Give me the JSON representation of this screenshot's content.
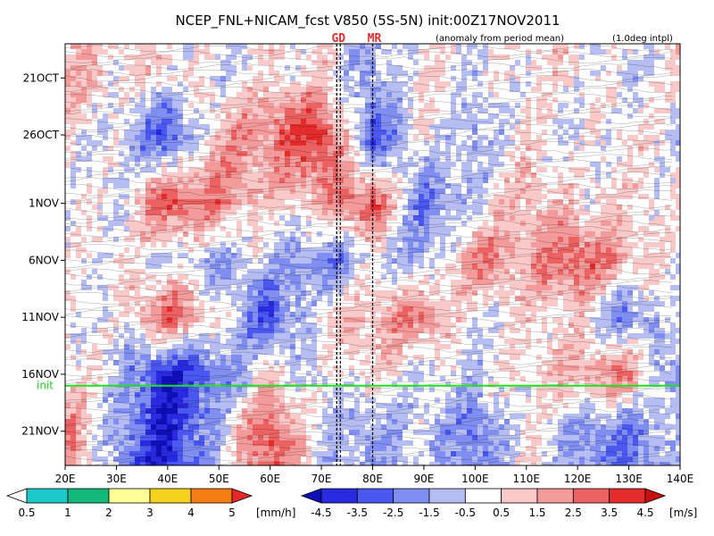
{
  "chart_data": {
    "type": "heatmap",
    "title": "NCEP_FNL+NICAM_fcst V850 (5S-5N) init:00Z17NOV2011",
    "subtitle": "(anomaly from period mean)",
    "note": "(1.0deg intpl)",
    "x_ticks": [
      {
        "lon": 20,
        "label": "20E"
      },
      {
        "lon": 30,
        "label": "30E"
      },
      {
        "lon": 40,
        "label": "40E"
      },
      {
        "lon": 50,
        "label": "50E"
      },
      {
        "lon": 60,
        "label": "60E"
      },
      {
        "lon": 70,
        "label": "70E"
      },
      {
        "lon": 80,
        "label": "80E"
      },
      {
        "lon": 90,
        "label": "90E"
      },
      {
        "lon": 100,
        "label": "100E"
      },
      {
        "lon": 110,
        "label": "110E"
      },
      {
        "lon": 120,
        "label": "120E"
      },
      {
        "lon": 130,
        "label": "130E"
      },
      {
        "lon": 140,
        "label": "140E"
      }
    ],
    "xlim": [
      20,
      140
    ],
    "y_ticks": [
      {
        "date": "2011-10-21",
        "label": "21OCT"
      },
      {
        "date": "2011-10-26",
        "label": "26OCT"
      },
      {
        "date": "2011-11-01",
        "label": "1NOV"
      },
      {
        "date": "2011-11-06",
        "label": "6NOV"
      },
      {
        "date": "2011-11-11",
        "label": "11NOV"
      },
      {
        "date": "2011-11-16",
        "label": "16NOV"
      },
      {
        "date": "2011-11-21",
        "label": "21NOV"
      }
    ],
    "ylim": [
      "2011-10-18",
      "2011-11-24"
    ],
    "init_line": {
      "date": "2011-11-17",
      "label": "init"
    },
    "markers": [
      {
        "lon": 73,
        "label": "GD"
      },
      {
        "lon": 80,
        "label": "MR"
      }
    ],
    "v850_anomaly": {
      "lons": [
        20,
        30,
        40,
        50,
        60,
        70,
        80,
        90,
        100,
        110,
        120,
        130,
        140
      ],
      "dates": [
        "2011-10-21",
        "2011-10-26",
        "2011-11-01",
        "2011-11-06",
        "2011-11-11",
        "2011-11-16",
        "2011-11-21"
      ],
      "values": [
        [
          1.5,
          0.5,
          0.5,
          -0.5,
          0.5,
          0.5,
          -1.5,
          0.5,
          -0.5,
          0.5,
          0.5,
          -0.5,
          0.5
        ],
        [
          0.5,
          -0.5,
          -3.5,
          1.5,
          2.5,
          4.5,
          -3.5,
          0.5,
          -1.5,
          0.5,
          -0.5,
          0.5,
          -0.5
        ],
        [
          0.5,
          -0.5,
          3.5,
          2.5,
          0.5,
          1.5,
          3.5,
          -2.5,
          -0.5,
          1.5,
          0.5,
          0.5,
          0.5
        ],
        [
          -0.5,
          0.5,
          -0.5,
          -1.5,
          -0.5,
          -2.5,
          -0.5,
          -1.5,
          2.5,
          1.5,
          3.5,
          1.5,
          -0.5
        ],
        [
          0.5,
          -0.5,
          3.5,
          0.5,
          -3.5,
          0.5,
          1.5,
          2.5,
          -0.5,
          0.5,
          0.5,
          -2.5,
          0.5
        ],
        [
          0.5,
          -0.5,
          -4.5,
          -2.5,
          0.5,
          -0.5,
          0.5,
          -0.5,
          -0.5,
          0.5,
          1.5,
          2.5,
          -2.5
        ],
        [
          2.5,
          -1.5,
          -4.5,
          -0.5,
          3.5,
          -0.5,
          -1.5,
          -0.5,
          -2.5,
          0.5,
          -1.5,
          -2.5,
          -0.5
        ]
      ]
    },
    "velocity_colorbar": {
      "unit": "[m/s]",
      "labels": [
        "-4.5",
        "-3.5",
        "-2.5",
        "-1.5",
        "-0.5",
        "0.5",
        "1.5",
        "2.5",
        "3.5",
        "4.5"
      ],
      "colors": [
        "#1010b8",
        "#2a2ae0",
        "#4a58f0",
        "#7f8ef0",
        "#b5bdf2",
        "#ffffff",
        "#f9c8c8",
        "#f39a9a",
        "#ec6262",
        "#e42c2c",
        "#c81010"
      ]
    },
    "precip_colorbar": {
      "unit": "[mm/h]",
      "labels": [
        "0.5",
        "1",
        "2",
        "3",
        "4",
        "5"
      ],
      "colors": [
        "#ffffff",
        "#1cc8c8",
        "#14b87a",
        "#ffff96",
        "#f5d21e",
        "#f57d14",
        "#e62828"
      ]
    }
  }
}
